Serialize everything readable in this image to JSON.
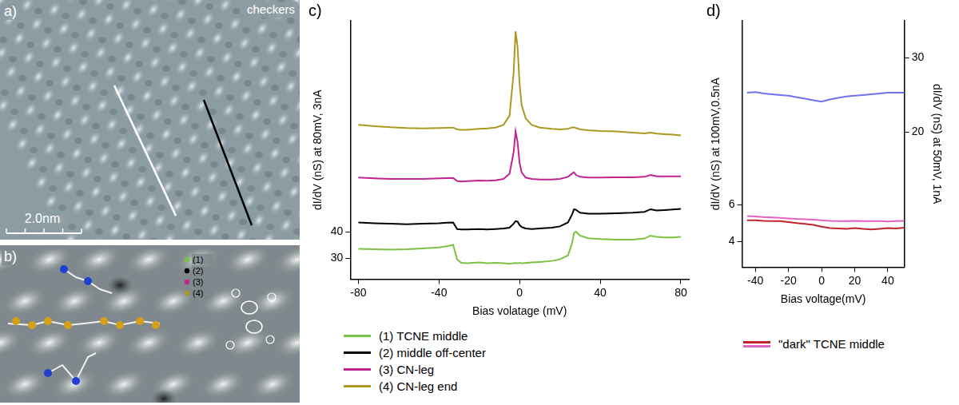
{
  "images": [
    {
      "panel": "a)",
      "caption": "checkers",
      "scale_bar": "2.0nm"
    },
    {
      "panel": "b)",
      "points": [
        "(1)",
        "(2)",
        "(3)",
        "(4)"
      ]
    }
  ],
  "chart_data": [
    {
      "panel": "c)",
      "type": "line",
      "x_label": "Bias volatage (mV)",
      "y_label": "dI/dV (nS) at 80mV, 3nA",
      "x": [
        -80,
        -72,
        -64,
        -56,
        -48,
        -40,
        -36,
        -33,
        -31,
        -29,
        -26,
        -20,
        -16,
        -12,
        -8,
        -5,
        -3,
        -2,
        -1,
        0,
        1,
        3,
        6,
        10,
        16,
        20,
        24,
        26,
        27,
        28,
        30,
        34,
        40,
        48,
        56,
        62,
        65,
        68,
        72,
        76,
        80
      ],
      "xlim": [
        -84,
        84
      ],
      "xticks": [
        -80,
        -40,
        0,
        40,
        80
      ],
      "ylim": [
        22,
        120
      ],
      "yticks": [
        30,
        40
      ],
      "grid": false,
      "legend": "bottom",
      "series": [
        {
          "name": "(1) TCNE middle",
          "color": "#7cc242",
          "values": [
            33.5,
            33.3,
            33.2,
            33.3,
            33.6,
            34.0,
            34.5,
            35.0,
            29.5,
            28.2,
            28.0,
            28.3,
            28.0,
            28.2,
            28.0,
            27.8,
            28.0,
            28.1,
            28.0,
            28.2,
            28.0,
            28.1,
            28.3,
            28.5,
            28.9,
            29.5,
            31.0,
            35.5,
            39.5,
            40.0,
            38.5,
            37.5,
            37.2,
            37.0,
            37.0,
            37.4,
            38.5,
            38.0,
            37.8,
            37.8,
            38.0
          ]
        },
        {
          "name": "(2) middle off-center",
          "color": "#000000",
          "values": [
            43.5,
            43.2,
            43.0,
            42.8,
            43.0,
            43.2,
            43.4,
            43.5,
            41.0,
            40.8,
            40.8,
            41.0,
            40.8,
            41.0,
            41.2,
            41.5,
            43.0,
            44.0,
            43.8,
            42.5,
            41.8,
            41.2,
            41.0,
            41.2,
            41.5,
            42.0,
            43.5,
            46.5,
            48.5,
            48.3,
            47.2,
            46.8,
            46.8,
            47.0,
            47.2,
            47.5,
            48.5,
            48.0,
            48.2,
            48.4,
            48.6
          ]
        },
        {
          "name": "(3) CN-leg",
          "color": "#c2248f",
          "values": [
            60.5,
            60.2,
            60.0,
            60.0,
            60.0,
            60.2,
            60.3,
            60.4,
            59.2,
            59.0,
            59.2,
            59.4,
            59.3,
            59.5,
            60.0,
            62.0,
            70.0,
            78.0,
            74.0,
            66.0,
            62.5,
            60.5,
            60.0,
            59.8,
            59.8,
            60.0,
            60.8,
            62.0,
            62.5,
            61.5,
            60.8,
            60.5,
            60.5,
            60.6,
            60.6,
            60.8,
            61.5,
            61.0,
            61.0,
            61.0,
            61.0
          ]
        },
        {
          "name": "(4) CN-leg end",
          "color": "#a99a1f",
          "values": [
            80.5,
            80.0,
            79.6,
            79.3,
            79.2,
            79.3,
            79.4,
            79.5,
            78.8,
            78.6,
            78.6,
            79.0,
            79.2,
            79.5,
            80.5,
            84.0,
            100.0,
            116.0,
            110.0,
            96.0,
            88.0,
            83.0,
            80.5,
            79.5,
            79.0,
            78.8,
            79.0,
            79.5,
            79.6,
            79.3,
            78.8,
            78.5,
            78.2,
            78.0,
            77.6,
            77.3,
            77.6,
            77.2,
            77.0,
            76.8,
            76.5
          ]
        }
      ]
    },
    {
      "panel": "d)",
      "type": "line",
      "x_label": "Bias voltage(mV)",
      "y_label": "dI/dV (nS) at 100mV,0.5nA",
      "y2_label": "dI/dV (nS) at 50mV, 1nA",
      "x": [
        -45,
        -40,
        -35,
        -30,
        -25,
        -20,
        -15,
        -10,
        -5,
        0,
        5,
        10,
        15,
        20,
        25,
        30,
        35,
        40,
        45,
        50
      ],
      "xlim": [
        -48,
        50
      ],
      "xticks": [
        -40,
        -20,
        0,
        20,
        40
      ],
      "ylim": [
        2.6,
        16
      ],
      "yticks": [
        4,
        6
      ],
      "y2lim": [
        1.8,
        35
      ],
      "y2ticks": [
        20,
        30
      ],
      "grid": false,
      "legend": "bottom",
      "series": [
        {
          "name": "\"dark\" TCNE middle",
          "color": "#c0232b",
          "values": [
            5.15,
            5.15,
            5.12,
            5.1,
            5.1,
            5.05,
            5.0,
            4.95,
            4.9,
            4.8,
            4.72,
            4.7,
            4.68,
            4.72,
            4.68,
            4.65,
            4.68,
            4.72,
            4.7,
            4.75
          ]
        },
        {
          "name": "\"dark\" TCNE middle",
          "color": "#e262c2",
          "values": [
            5.38,
            5.35,
            5.32,
            5.3,
            5.28,
            5.25,
            5.22,
            5.2,
            5.18,
            5.15,
            5.12,
            5.1,
            5.1,
            5.12,
            5.1,
            5.1,
            5.1,
            5.08,
            5.1,
            5.12
          ]
        },
        {
          "color": "#6f70f0",
          "axis": "y2",
          "values": [
            25.3,
            25.4,
            25.2,
            25.1,
            25.0,
            24.9,
            24.7,
            24.5,
            24.3,
            24.1,
            24.4,
            24.6,
            24.8,
            24.9,
            25.0,
            25.1,
            25.2,
            25.3,
            25.3,
            25.3
          ]
        }
      ]
    }
  ]
}
